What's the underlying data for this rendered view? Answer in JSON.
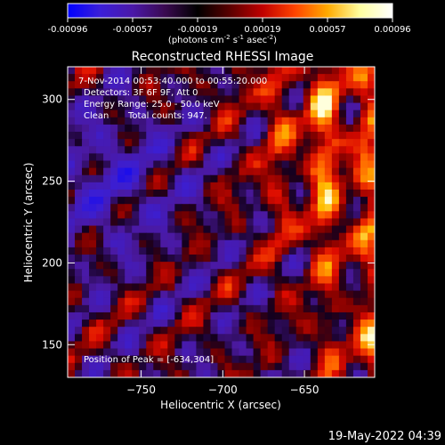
{
  "chart_data": {
    "type": "heatmap",
    "title": "Reconstructed RHESSI Image",
    "xlabel": "Heliocentric X (arcsec)",
    "ylabel": "Heliocentric Y (arcsec)",
    "xlim": [
      -795,
      -607
    ],
    "ylim": [
      130,
      320
    ],
    "x_ticks": [
      -750,
      -700,
      -650
    ],
    "y_ticks": [
      150,
      200,
      250,
      300
    ],
    "colorbar": {
      "ticks": [
        "-0.00096",
        "-0.00057",
        "-0.00019",
        "0.00019",
        "0.00057",
        "0.00096"
      ],
      "range": [
        -0.00096,
        0.00096
      ],
      "unit_prefix": "(photons cm",
      "unit_exp1": "-2",
      "unit_mid": " s",
      "unit_exp2": "-1",
      "unit_mid2": " asec",
      "unit_exp3": "-2",
      "unit_suffix": ")",
      "colors": [
        "#0000ff",
        "#3b1fd8",
        "#4a18a8",
        "#3a0a50",
        "#000000",
        "#5a0000",
        "#c00000",
        "#ff4400",
        "#ffaa00",
        "#ffffa0",
        "#ffffff"
      ]
    },
    "peak": [
      -634,
      304
    ],
    "annotations": {
      "time": "7-Nov-2014 00:53:40.000 to 00:55:20.000",
      "detectors": "Detectors: 3F 6F 9F, Att 0",
      "energy": "Energy Range: 25.0 - 50.0 keV",
      "clean": "Clean",
      "counts": "Total counts: 947.",
      "peak_text": "Position of Peak = [-634,304]"
    }
  },
  "footer": {
    "timestamp": "19-May-2022 04:39"
  }
}
